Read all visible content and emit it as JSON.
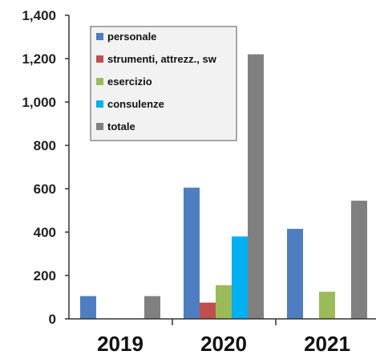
{
  "chart_data": {
    "type": "bar",
    "categories": [
      "2019",
      "2020",
      "2021"
    ],
    "series": [
      {
        "name": "personale",
        "values": [
          105,
          605,
          415
        ],
        "color": "#4f7ec0"
      },
      {
        "name": "strumenti, attrezz., sw",
        "values": [
          0,
          75,
          0
        ],
        "color": "#c0504d"
      },
      {
        "name": "esercizio",
        "values": [
          0,
          155,
          125
        ],
        "color": "#9bbb59"
      },
      {
        "name": "consulenze",
        "values": [
          0,
          380,
          0
        ],
        "color": "#00b0f0"
      },
      {
        "name": "totale",
        "values": [
          105,
          1220,
          545
        ],
        "color": "#808080"
      }
    ],
    "ylim": [
      0,
      1400
    ],
    "yticks": [
      0,
      200,
      400,
      600,
      800,
      1000,
      1200,
      1400
    ],
    "ytick_labels": [
      "0",
      "200",
      "400",
      "600",
      "800",
      "1,000",
      "1,200",
      "1,400"
    ],
    "grid": false,
    "legend_position": "top-left"
  }
}
